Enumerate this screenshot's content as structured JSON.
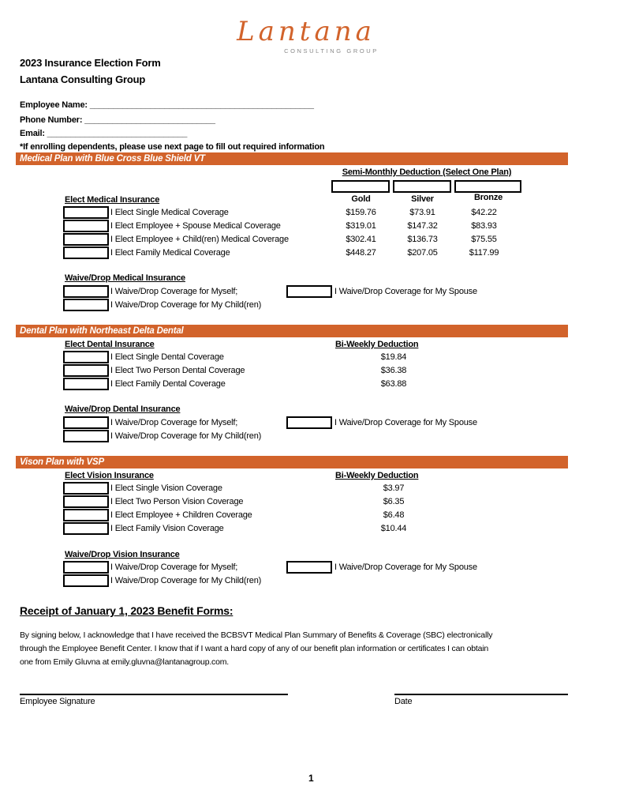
{
  "logo": {
    "name": "Lantana",
    "tagline": "CONSULTING GROUP"
  },
  "title": "2023 Insurance Election Form",
  "company": "Lantana Consulting Group",
  "fields": {
    "employee_name": "Employee Name: ________________________________________________",
    "phone": "Phone Number: ____________________________",
    "email": "Email: ______________________________",
    "note": "*If enrolling dependents, please use next page to fill out required information"
  },
  "medical": {
    "header": "Medical Plan with Blue Cross Blue Shield VT",
    "deduction_label": "Semi-Monthly Deduction (Select One Plan)",
    "plans": [
      "Gold",
      "Silver",
      "Bronze"
    ],
    "elect_label": "Elect Medical Insurance",
    "rows": [
      {
        "label": "I Elect Single Medical Coverage",
        "prices": [
          "$159.76",
          "$73.91",
          "$42.22"
        ]
      },
      {
        "label": "I Elect Employee + Spouse Medical Coverage",
        "prices": [
          "$319.01",
          "$147.32",
          "$83.93"
        ]
      },
      {
        "label": "I Elect Employee + Child(ren) Medical Coverage",
        "prices": [
          "$302.41",
          "$136.73",
          "$75.55"
        ]
      },
      {
        "label": "I Elect Family Medical Coverage",
        "prices": [
          "$448.27",
          "$207.05",
          "$117.99"
        ]
      }
    ],
    "waive_label": "Waive/Drop Medical Insurance",
    "waive_self": "I Waive/Drop Coverage for Myself;",
    "waive_children": "I Waive/Drop Coverage for My Child(ren)",
    "waive_spouse": "I Waive/Drop Coverage for My Spouse"
  },
  "dental": {
    "header": "Dental Plan with Northeast Delta Dental",
    "elect_label": "Elect Dental Insurance",
    "deduction_label": "Bi-Weekly Deduction",
    "rows": [
      {
        "label": "I Elect Single Dental Coverage",
        "price": "$19.84"
      },
      {
        "label": "I Elect Two Person Dental Coverage",
        "price": "$36.38"
      },
      {
        "label": "I Elect Family Dental Coverage",
        "price": "$63.88"
      }
    ],
    "waive_label": "Waive/Drop Dental Insurance",
    "waive_self": "I Waive/Drop Coverage for Myself;",
    "waive_children": "I Waive/Drop Coverage for My Child(ren)",
    "waive_spouse": "I Waive/Drop Coverage for My Spouse"
  },
  "vision": {
    "header": "Vison Plan with VSP",
    "elect_label": "Elect Vision Insurance",
    "deduction_label": "Bi-Weekly Deduction",
    "rows": [
      {
        "label": "I Elect Single Vision Coverage",
        "price": "$3.97"
      },
      {
        "label": "I Elect Two Person Vision Coverage",
        "price": "$6.35"
      },
      {
        "label": "I Elect Employee + Children Coverage",
        "price": "$6.48"
      },
      {
        "label": "I Elect Family Vision Coverage",
        "price": "$10.44"
      }
    ],
    "waive_label": "Waive/Drop Vision Insurance",
    "waive_self": "I Waive/Drop Coverage for Myself;",
    "waive_children": "I Waive/Drop Coverage for My Child(ren)",
    "waive_spouse": "I Waive/Drop Coverage for My Spouse"
  },
  "receipt": {
    "heading": "Receipt of January 1, 2023 Benefit Forms:",
    "lines": [
      "By signing below, I acknowledge that I have received the BCBSVT Medical Plan Summary of Benefits & Coverage (SBC) electronically",
      "through the Employee Benefit Center. I know that if I want a hard copy of any of our benefit plan information or certificates I can obtain",
      "one from Emily Gluvna at emily.gluvna@lantanagroup.com."
    ],
    "signature_label": "Employee Signature",
    "date_label": "Date"
  },
  "page_number": "1",
  "colors": {
    "accent": "#d2632b"
  }
}
